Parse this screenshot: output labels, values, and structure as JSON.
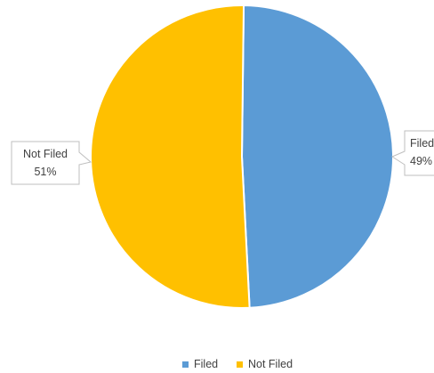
{
  "chart_data": {
    "type": "pie",
    "title": "",
    "slices": [
      {
        "label": "Filed",
        "value": 49,
        "display": "49%",
        "color": "#5B9BD5"
      },
      {
        "label": "Not Filed",
        "value": 51,
        "display": "51%",
        "color": "#FFC000"
      }
    ],
    "legend": {
      "position": "bottom",
      "entries": [
        "Filed",
        "Not Filed"
      ]
    },
    "data_labels": "callout"
  }
}
